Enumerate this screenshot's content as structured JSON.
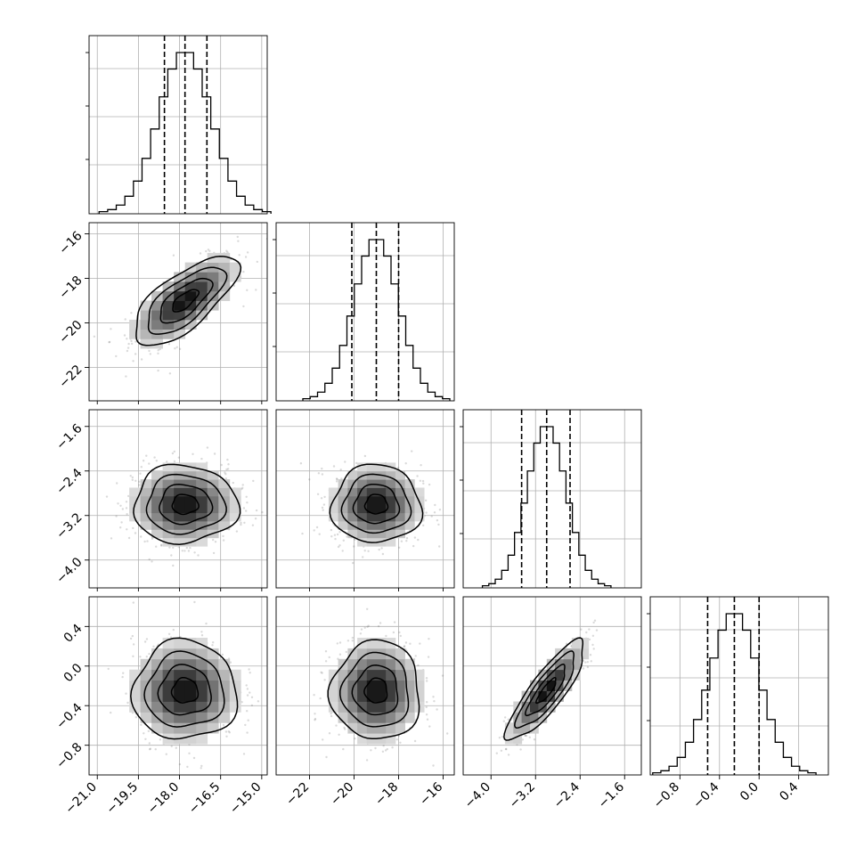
{
  "chart_data": {
    "type": "corner",
    "grid": true,
    "parameters": [
      {
        "mean": -17.8,
        "std": 0.95,
        "range": [
          -21.3,
          -14.8
        ],
        "ticks": [
          -21.0,
          -19.5,
          -18.0,
          -16.5,
          -15.0
        ],
        "tick_labels": [
          "−21.0",
          "−19.5",
          "−18.0",
          "−16.5",
          "−15.0"
        ],
        "quantiles": [
          -18.55,
          -17.8,
          -17.0
        ]
      },
      {
        "mean": -19.0,
        "std": 1.0,
        "range": [
          -23.5,
          -15.5
        ],
        "ticks": [
          -22,
          -20,
          -18,
          -16
        ],
        "tick_labels": [
          "−22",
          "−20",
          "−18",
          "−16"
        ],
        "quantiles": [
          -20.1,
          -19.0,
          -18.0
        ]
      },
      {
        "mean": -3.0,
        "std": 0.35,
        "range": [
          -4.5,
          -1.3
        ],
        "ticks": [
          -4.0,
          -3.2,
          -2.4,
          -1.6
        ],
        "tick_labels": [
          "−4.0",
          "−3.2",
          "−2.4",
          "−1.6"
        ],
        "quantiles": [
          -3.45,
          -3.0,
          -2.58
        ]
      },
      {
        "mean": -0.25,
        "std": 0.25,
        "range": [
          -1.1,
          0.7
        ],
        "ticks": [
          -0.8,
          -0.4,
          0.0,
          0.4
        ],
        "tick_labels": [
          "−0.8",
          "−0.4",
          "0.0",
          "0.4"
        ],
        "quantiles": [
          -0.52,
          -0.25,
          0.0
        ]
      }
    ],
    "correlations": [
      [
        1.0,
        0.7,
        0.0,
        0.0
      ],
      [
        0.7,
        1.0,
        0.0,
        0.0
      ],
      [
        0.0,
        0.0,
        1.0,
        0.85
      ],
      [
        0.0,
        0.0,
        0.85,
        1.0
      ]
    ]
  }
}
